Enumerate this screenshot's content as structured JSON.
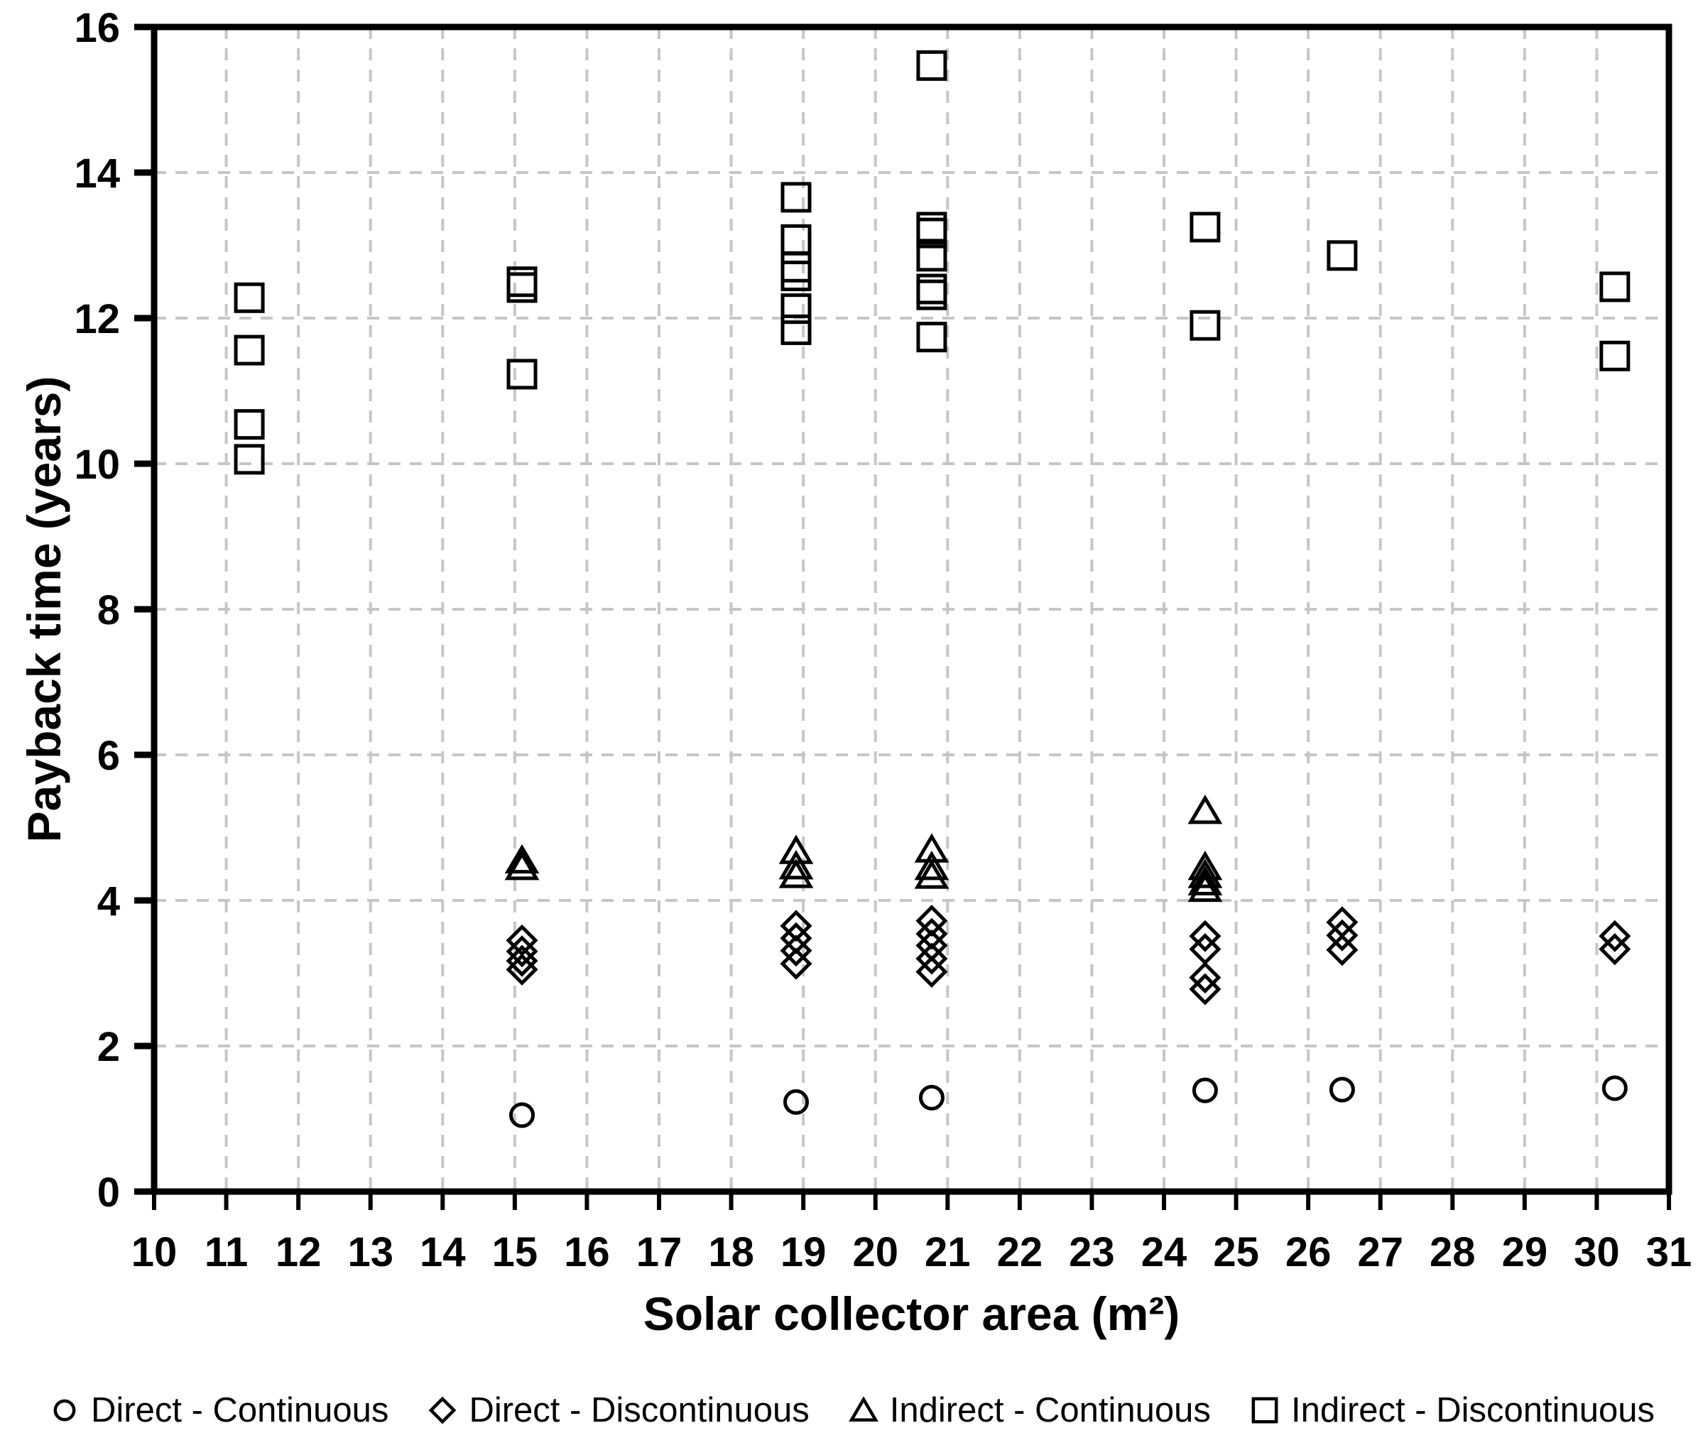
{
  "figure": {
    "background": "#ffffff"
  },
  "style": {
    "marker_color": "#000000",
    "grid_color": "#c6c6c6",
    "axis_color": "#000000",
    "text_color": "#000000"
  },
  "chart_data": {
    "type": "scatter",
    "title": "",
    "xlabel": "Solar collector area (m²)",
    "ylabel": "Payback time (years)",
    "xlim": [
      10,
      31
    ],
    "ylim": [
      0,
      16
    ],
    "x_tick_step": 1,
    "y_tick_step": 2,
    "grid": "dashed",
    "legend_position": "bottom",
    "series": [
      {
        "name": "Direct - Continuous",
        "marker": "circle",
        "points": [
          [
            15.1,
            1.05
          ],
          [
            18.9,
            1.23
          ],
          [
            20.78,
            1.29
          ],
          [
            24.57,
            1.39
          ],
          [
            26.47,
            1.4
          ],
          [
            30.25,
            1.42
          ]
        ]
      },
      {
        "name": "Direct - Discontinuous",
        "marker": "diamond",
        "points": [
          [
            15.1,
            3.45
          ],
          [
            15.1,
            3.3
          ],
          [
            15.1,
            3.17
          ],
          [
            15.1,
            3.05
          ],
          [
            18.9,
            3.65
          ],
          [
            18.9,
            3.48
          ],
          [
            18.9,
            3.31
          ],
          [
            18.9,
            3.13
          ],
          [
            20.78,
            3.72
          ],
          [
            20.78,
            3.54
          ],
          [
            20.78,
            3.38
          ],
          [
            20.78,
            3.2
          ],
          [
            20.78,
            3.02
          ],
          [
            24.57,
            3.51
          ],
          [
            24.57,
            3.33
          ],
          [
            24.57,
            2.94
          ],
          [
            24.57,
            2.78
          ],
          [
            26.47,
            3.7
          ],
          [
            26.47,
            3.52
          ],
          [
            26.47,
            3.32
          ],
          [
            30.25,
            3.51
          ],
          [
            30.25,
            3.33
          ]
        ]
      },
      {
        "name": "Indirect - Continuous",
        "marker": "triangle",
        "points": [
          [
            15.1,
            4.55
          ],
          [
            15.1,
            4.46
          ],
          [
            18.9,
            4.68
          ],
          [
            18.9,
            4.47
          ],
          [
            18.9,
            4.35
          ],
          [
            20.78,
            4.7
          ],
          [
            20.78,
            4.46
          ],
          [
            20.78,
            4.34
          ],
          [
            24.57,
            5.23
          ],
          [
            24.57,
            4.46
          ],
          [
            24.57,
            4.35
          ],
          [
            24.57,
            4.25
          ],
          [
            24.57,
            4.16
          ]
        ]
      },
      {
        "name": "Indirect - Discontinuous",
        "marker": "square",
        "points": [
          [
            11.32,
            12.28
          ],
          [
            11.32,
            11.56
          ],
          [
            11.32,
            10.54
          ],
          [
            11.32,
            10.06
          ],
          [
            15.1,
            12.5
          ],
          [
            15.1,
            12.42
          ],
          [
            15.1,
            11.23
          ],
          [
            18.9,
            13.66
          ],
          [
            18.9,
            13.08
          ],
          [
            18.9,
            12.7
          ],
          [
            18.9,
            12.58
          ],
          [
            18.9,
            12.13
          ],
          [
            18.9,
            11.84
          ],
          [
            20.78,
            15.47
          ],
          [
            20.78,
            13.25
          ],
          [
            20.78,
            13.17
          ],
          [
            20.78,
            12.85
          ],
          [
            20.78,
            12.4
          ],
          [
            20.78,
            12.32
          ],
          [
            20.78,
            11.74
          ],
          [
            24.57,
            13.25
          ],
          [
            24.57,
            11.9
          ],
          [
            26.47,
            12.86
          ],
          [
            30.25,
            12.43
          ],
          [
            30.25,
            11.48
          ]
        ]
      }
    ]
  }
}
